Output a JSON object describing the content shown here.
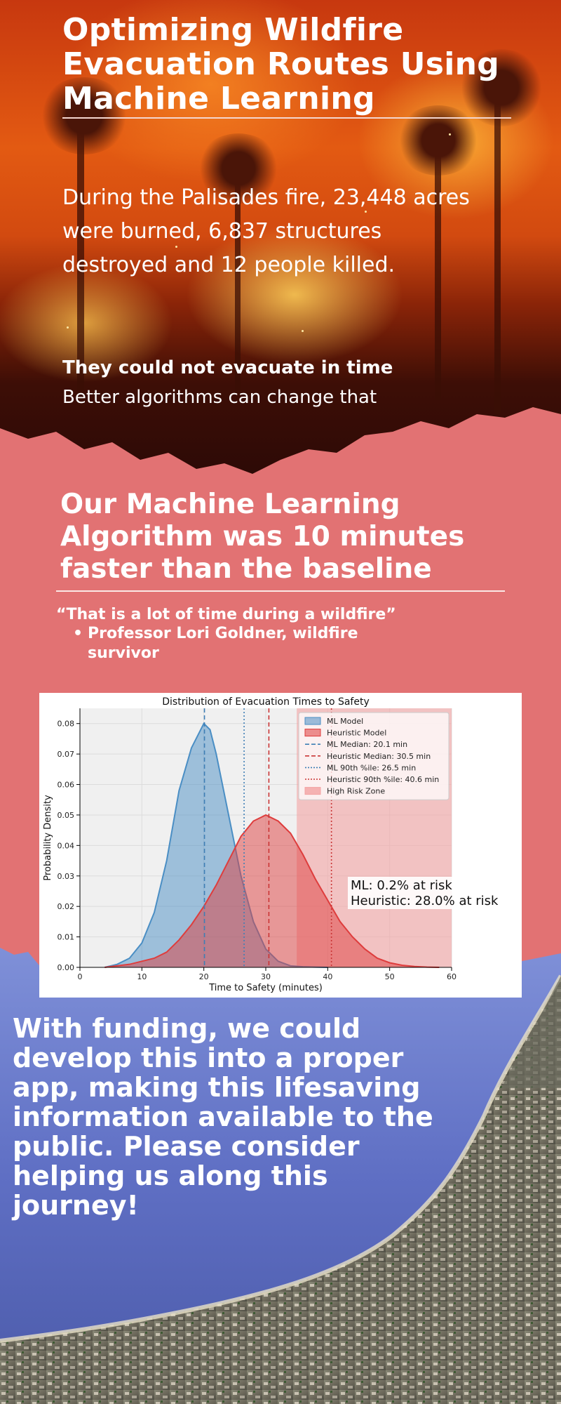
{
  "hero": {
    "title": "Optimizing Wildfire Evacuation Routes Using Machine Learning",
    "stat_text": "During the Palisades fire, 23,448 acres were burned, 6,837 structures destroyed and 12 people killed.",
    "punchline": "They could not evacuate in time",
    "tagline": "Better algorithms can change that",
    "background_image": "wildfire-photo"
  },
  "middle": {
    "claim": "Our Machine Learning Algorithm was 10 minutes faster than the baseline",
    "quote": "“That is a lot of time during a wildfire”",
    "attribution_bullet": "•",
    "attribution": "Professor Lori Goldner, wildfire survivor",
    "background_color": "#e27273"
  },
  "chart_data": {
    "type": "area",
    "title": "Distribution of Evacuation Times to Safety",
    "xlabel": "Time to Safety (minutes)",
    "ylabel": "Probability Density",
    "xlim": [
      0,
      60
    ],
    "ylim": [
      0,
      0.085
    ],
    "xticks": [
      0,
      10,
      20,
      30,
      40,
      50,
      60
    ],
    "yticks": [
      0.0,
      0.01,
      0.02,
      0.03,
      0.04,
      0.05,
      0.06,
      0.07,
      0.08
    ],
    "ytick_labels": [
      "0.00",
      "0.01",
      "0.02",
      "0.03",
      "0.04",
      "0.05",
      "0.06",
      "0.07",
      "0.08"
    ],
    "grid": true,
    "legend_position": "top-right",
    "series": [
      {
        "name": "ML Model",
        "color": "#4a8ec4",
        "x": [
          4,
          6,
          8,
          10,
          12,
          14,
          16,
          18,
          19,
          20,
          21,
          22,
          24,
          26,
          28,
          30,
          32,
          34,
          36,
          38,
          40
        ],
        "y": [
          0.0,
          0.001,
          0.003,
          0.008,
          0.018,
          0.035,
          0.058,
          0.072,
          0.076,
          0.08,
          0.078,
          0.07,
          0.05,
          0.03,
          0.015,
          0.006,
          0.002,
          0.0005,
          0.0002,
          0.0001,
          0.0
        ]
      },
      {
        "name": "Heuristic Model",
        "color": "#de3d3d",
        "x": [
          4,
          8,
          10,
          12,
          14,
          16,
          18,
          20,
          22,
          24,
          26,
          28,
          30,
          32,
          34,
          36,
          38,
          40,
          42,
          44,
          46,
          48,
          50,
          52,
          54,
          56,
          58
        ],
        "y": [
          0.0,
          0.001,
          0.002,
          0.003,
          0.005,
          0.009,
          0.014,
          0.02,
          0.027,
          0.035,
          0.043,
          0.048,
          0.05,
          0.048,
          0.044,
          0.037,
          0.029,
          0.022,
          0.015,
          0.01,
          0.006,
          0.003,
          0.0015,
          0.0007,
          0.0003,
          0.0001,
          0.0
        ]
      }
    ],
    "reference_lines": [
      {
        "label": "ML Median: 20.1 min",
        "x": 20.1,
        "style": "dashed",
        "color": "#3f7fb5"
      },
      {
        "label": "Heuristic Median: 30.5 min",
        "x": 30.5,
        "style": "dashed",
        "color": "#c93434"
      },
      {
        "label": "ML 90th %ile: 26.5 min",
        "x": 26.5,
        "style": "dotted",
        "color": "#3f7fb5"
      },
      {
        "label": "Heuristic 90th %ile: 40.6 min",
        "x": 40.6,
        "style": "dotted",
        "color": "#c93434"
      }
    ],
    "shaded_region": {
      "label": "High Risk Zone",
      "x": [
        35,
        60
      ],
      "color": "#f3a3a3"
    },
    "annotation": [
      "ML: 0.2% at risk",
      "Heuristic: 28.0% at risk"
    ]
  },
  "bottom": {
    "appeal": "With funding, we could develop this into a proper app, making this lifesaving information available to the public. Please consider helping us along this journey!",
    "background_image": "coastline-aerial-photo"
  }
}
